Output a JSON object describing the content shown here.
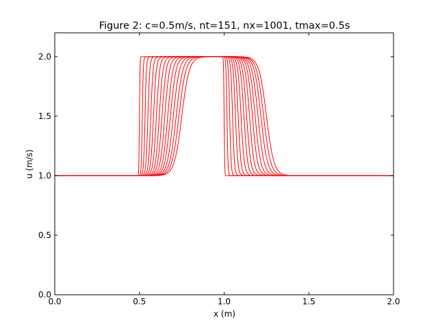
{
  "chart_data": {
    "type": "line",
    "title": "Figure 2: c=0.5m/s, nt=151, nx=1001, tmax=0.5s",
    "xlabel": "x (m)",
    "ylabel": "u (m/s)",
    "xlim": [
      0.0,
      2.0
    ],
    "ylim": [
      0.0,
      2.2
    ],
    "x_ticks": [
      "0.0",
      "0.5",
      "1.0",
      "1.5",
      "2.0"
    ],
    "y_ticks": [
      "0.0",
      "0.5",
      "1.0",
      "1.5",
      "2.0"
    ],
    "x_tick_values": [
      0.0,
      0.5,
      1.0,
      1.5,
      2.0
    ],
    "y_tick_values": [
      0.0,
      0.5,
      1.0,
      1.5,
      2.0
    ],
    "grid": false,
    "line_color": "#ff0000",
    "baseline_value": 1.0,
    "peak_value": 2.0,
    "series": [
      {
        "rise_x": 0.5,
        "fall_x": 1.0
      },
      {
        "rise_x": 0.517,
        "fall_x": 1.017
      },
      {
        "rise_x": 0.533,
        "fall_x": 1.033
      },
      {
        "rise_x": 0.55,
        "fall_x": 1.05
      },
      {
        "rise_x": 0.567,
        "fall_x": 1.067
      },
      {
        "rise_x": 0.583,
        "fall_x": 1.083
      },
      {
        "rise_x": 0.6,
        "fall_x": 1.1
      },
      {
        "rise_x": 0.617,
        "fall_x": 1.117
      },
      {
        "rise_x": 0.633,
        "fall_x": 1.133
      },
      {
        "rise_x": 0.65,
        "fall_x": 1.15
      },
      {
        "rise_x": 0.667,
        "fall_x": 1.167
      },
      {
        "rise_x": 0.683,
        "fall_x": 1.183
      },
      {
        "rise_x": 0.7,
        "fall_x": 1.2
      },
      {
        "rise_x": 0.717,
        "fall_x": 1.217
      },
      {
        "rise_x": 0.733,
        "fall_x": 1.233
      },
      {
        "rise_x": 0.75,
        "fall_x": 1.25
      }
    ]
  }
}
